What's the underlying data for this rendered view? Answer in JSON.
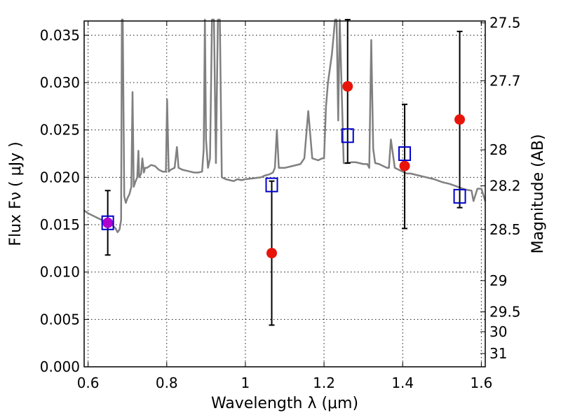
{
  "chart_data": {
    "type": "scatter",
    "title": "",
    "xlabel": "Wavelength  λ (μm)",
    "ylabel": "Flux  Fν  ( μJy )",
    "y2label": "Magnitude (AB)",
    "xlim": [
      0.59,
      1.61
    ],
    "ylim": [
      0.0,
      0.0365
    ],
    "grid": true,
    "x_ticks": [
      0.6,
      0.8,
      1.0,
      1.2,
      1.4,
      1.6
    ],
    "x_tick_labels": [
      "0.6",
      "0.8",
      "1",
      "1.2",
      "1.4",
      "1.6"
    ],
    "y_ticks": [
      0.0,
      0.005,
      0.01,
      0.015,
      0.02,
      0.025,
      0.03,
      0.035
    ],
    "y_tick_labels": [
      "0.000",
      "0.005",
      "0.010",
      "0.015",
      "0.020",
      "0.025",
      "0.030",
      "0.035"
    ],
    "y2_ticks": [
      {
        "label": "27.5",
        "flux": 0.0363
      },
      {
        "label": "27.7",
        "flux": 0.0302
      },
      {
        "label": "28",
        "flux": 0.0229
      },
      {
        "label": "28.2",
        "flux": 0.0191
      },
      {
        "label": "28.5",
        "flux": 0.0145
      },
      {
        "label": "29",
        "flux": 0.0091
      },
      {
        "label": "29.5",
        "flux": 0.0058
      },
      {
        "label": "30",
        "flux": 0.0037
      },
      {
        "label": "31",
        "flux": 0.0014
      }
    ],
    "series": [
      {
        "kind": "model_spectrum",
        "color": "#808080",
        "x": [
          0.59,
          0.6,
          0.62,
          0.64,
          0.66,
          0.67,
          0.675,
          0.68,
          0.684,
          0.686,
          0.688,
          0.692,
          0.696,
          0.7,
          0.705,
          0.71,
          0.713,
          0.716,
          0.72,
          0.725,
          0.728,
          0.73,
          0.735,
          0.738,
          0.742,
          0.745,
          0.75,
          0.76,
          0.77,
          0.78,
          0.79,
          0.798,
          0.801,
          0.805,
          0.81,
          0.82,
          0.826,
          0.83,
          0.84,
          0.85,
          0.86,
          0.87,
          0.88,
          0.89,
          0.894,
          0.897,
          0.9,
          0.905,
          0.91,
          0.915,
          0.92,
          0.925,
          0.93,
          0.935,
          0.94,
          0.95,
          0.96,
          0.97,
          0.98,
          0.99,
          1.0,
          1.02,
          1.04,
          1.05,
          1.06,
          1.07,
          1.075,
          1.08,
          1.085,
          1.09,
          1.1,
          1.12,
          1.14,
          1.15,
          1.16,
          1.17,
          1.185,
          1.195,
          1.2,
          1.205,
          1.21,
          1.22,
          1.228,
          1.232,
          1.236,
          1.24,
          1.25,
          1.26,
          1.27,
          1.28,
          1.29,
          1.3,
          1.31,
          1.315,
          1.32,
          1.325,
          1.33,
          1.34,
          1.35,
          1.36,
          1.365,
          1.37,
          1.38,
          1.39,
          1.4,
          1.41,
          1.42,
          1.44,
          1.46,
          1.48,
          1.5,
          1.52,
          1.54,
          1.56,
          1.575,
          1.58,
          1.59,
          1.6,
          1.61
        ],
        "y": [
          0.0165,
          0.0162,
          0.0158,
          0.0154,
          0.015,
          0.0146,
          0.0142,
          0.0145,
          0.0155,
          0.0368,
          0.0368,
          0.018,
          0.0173,
          0.0178,
          0.0182,
          0.019,
          0.029,
          0.019,
          0.0195,
          0.02,
          0.0228,
          0.02,
          0.0204,
          0.022,
          0.0205,
          0.021,
          0.021,
          0.0213,
          0.0212,
          0.0208,
          0.0206,
          0.0206,
          0.0282,
          0.0206,
          0.0208,
          0.021,
          0.0232,
          0.021,
          0.0208,
          0.0207,
          0.0206,
          0.0205,
          0.0205,
          0.0206,
          0.023,
          0.0368,
          0.024,
          0.021,
          0.022,
          0.0368,
          0.0368,
          0.0215,
          0.0368,
          0.0368,
          0.02,
          0.0198,
          0.0197,
          0.0196,
          0.0198,
          0.0197,
          0.0198,
          0.0199,
          0.02,
          0.0202,
          0.0203,
          0.0205,
          0.021,
          0.025,
          0.021,
          0.021,
          0.021,
          0.0212,
          0.0214,
          0.022,
          0.027,
          0.022,
          0.0218,
          0.022,
          0.022,
          0.0275,
          0.03,
          0.033,
          0.0368,
          0.0368,
          0.026,
          0.0368,
          0.0215,
          0.0215,
          0.0216,
          0.0216,
          0.0215,
          0.0214,
          0.0214,
          0.021,
          0.0345,
          0.023,
          0.0215,
          0.0214,
          0.0212,
          0.021,
          0.021,
          0.024,
          0.021,
          0.0208,
          0.0206,
          0.0204,
          0.0204,
          0.0202,
          0.02,
          0.0198,
          0.0195,
          0.0193,
          0.019,
          0.0187,
          0.0186,
          0.0175,
          0.0188,
          0.0188,
          0.0175
        ]
      },
      {
        "kind": "observed",
        "color": "#e8140a",
        "marker": "circle",
        "x": [
          0.65,
          1.067,
          1.26,
          1.405,
          1.545
        ],
        "y": [
          0.0152,
          0.012,
          0.0296,
          0.0212,
          0.0261
        ]
      },
      {
        "kind": "observed_errorbar",
        "color": "#000000",
        "x": [
          0.65,
          1.067,
          1.26,
          1.405,
          1.545
        ],
        "y_low": [
          0.0118,
          0.0044,
          0.0215,
          0.0146,
          0.0168
        ],
        "y_high": [
          0.0186,
          0.0196,
          0.0368,
          0.0277,
          0.0354
        ]
      },
      {
        "kind": "model_bandpass",
        "color": "#0000cc",
        "marker": "square",
        "x": [
          0.65,
          1.067,
          1.26,
          1.405,
          1.545
        ],
        "y": [
          0.0152,
          0.0192,
          0.0244,
          0.0225,
          0.018
        ]
      }
    ],
    "overlap_marker_color": "#b000d0"
  }
}
